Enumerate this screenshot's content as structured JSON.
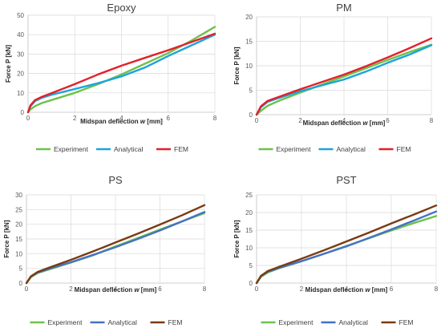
{
  "chart_data": [
    {
      "type": "line",
      "title": "Epoxy",
      "xlabel": "Midspan deflection w [mm]",
      "xlabel_main": "Midspan deflection ",
      "xlabel_var": "w",
      "xlabel_unit": " [mm]",
      "ylabel": "Force P [kN]",
      "xlim": [
        0,
        8
      ],
      "ylim": [
        0,
        50
      ],
      "xticks": [
        "0",
        "2",
        "4",
        "6",
        "8"
      ],
      "yticks": [
        "0",
        "10",
        "20",
        "30",
        "40",
        "50"
      ],
      "grid": true,
      "legend": "bottom",
      "series": [
        {
          "name": "Experiment",
          "color": "#6cc24a",
          "x": [
            0,
            0.1,
            0.3,
            0.6,
            1,
            2,
            3,
            4,
            5,
            6,
            7,
            8
          ],
          "y": [
            0,
            1.5,
            3.2,
            4.8,
            6.3,
            10,
            14.5,
            19.5,
            25,
            30.5,
            37,
            44
          ]
        },
        {
          "name": "Analytical",
          "color": "#1ca3dc",
          "x": [
            0,
            0.1,
            0.3,
            0.6,
            1,
            2,
            3,
            4,
            5,
            6,
            7,
            8
          ],
          "y": [
            0,
            3,
            5.8,
            7.5,
            9,
            12,
            15,
            18.5,
            23,
            29,
            34.5,
            40
          ]
        },
        {
          "name": "FEM",
          "color": "#e3202b",
          "x": [
            0,
            0.1,
            0.3,
            0.6,
            1,
            2,
            3,
            4,
            5,
            6,
            7,
            8
          ],
          "y": [
            0,
            3.5,
            6.3,
            8,
            9.8,
            14.5,
            19.5,
            24,
            28,
            32,
            36.2,
            40.5
          ]
        }
      ]
    },
    {
      "type": "line",
      "title": "PM",
      "xlabel": "Midspan deflection w [mm]",
      "xlabel_main": "Midspan deflection ",
      "xlabel_var": "w",
      "xlabel_unit": " [mm]",
      "ylabel": "Force P [kN]",
      "xlim": [
        0,
        8
      ],
      "ylim": [
        0,
        20
      ],
      "xticks": [
        "0",
        "2",
        "4",
        "6",
        "8"
      ],
      "yticks": [
        "0",
        "5",
        "10",
        "15",
        "20"
      ],
      "grid": true,
      "legend": "bottom",
      "series": [
        {
          "name": "Experiment",
          "color": "#6cc24a",
          "x": [
            0,
            0.2,
            0.5,
            1,
            2,
            3,
            4,
            5,
            6,
            7,
            8
          ],
          "y": [
            0,
            0.8,
            1.8,
            2.8,
            4.5,
            6.2,
            7.8,
            9.5,
            11.2,
            12.8,
            14.3
          ]
        },
        {
          "name": "Analytical",
          "color": "#1ca3dc",
          "x": [
            0,
            0.2,
            0.5,
            1,
            2,
            3,
            4,
            5,
            6,
            7,
            8
          ],
          "y": [
            0,
            1.5,
            2.6,
            3.4,
            4.8,
            6,
            7.2,
            8.8,
            10.6,
            12.3,
            14.2
          ]
        },
        {
          "name": "FEM",
          "color": "#e3202b",
          "x": [
            0,
            0.2,
            0.5,
            1,
            2,
            3,
            4,
            5,
            6,
            7,
            8
          ],
          "y": [
            0,
            1.7,
            2.8,
            3.6,
            5.2,
            6.7,
            8.2,
            9.9,
            11.7,
            13.6,
            15.6
          ]
        }
      ]
    },
    {
      "type": "line",
      "title": "PS",
      "xlabel": "Midspan deflection w [mm]",
      "xlabel_main": "Midspan deflection ",
      "xlabel_var": "w",
      "xlabel_unit": " [mm]",
      "ylabel": "Force P [kN]",
      "xlim": [
        0,
        8
      ],
      "ylim": [
        0,
        30
      ],
      "xticks": [
        "0",
        "2",
        "4",
        "6",
        "8"
      ],
      "yticks": [
        "0",
        "5",
        "10",
        "15",
        "20",
        "25",
        "30"
      ],
      "grid": true,
      "legend": "bottom",
      "series": [
        {
          "name": "Experiment",
          "color": "#6cc24a",
          "x": [
            0,
            0.2,
            0.5,
            1,
            2,
            3,
            4,
            5,
            6,
            7,
            8
          ],
          "y": [
            0,
            2,
            3.4,
            4.6,
            7,
            9.5,
            12.5,
            15.3,
            18.2,
            21,
            23.8
          ]
        },
        {
          "name": "Analytical",
          "color": "#4472c4",
          "x": [
            0,
            0.2,
            0.5,
            1,
            2,
            3,
            4,
            5,
            6,
            7,
            8
          ],
          "y": [
            0,
            2.2,
            3.6,
            4.8,
            7.1,
            9.6,
            12.2,
            15,
            17.9,
            21,
            24.2
          ]
        },
        {
          "name": "FEM",
          "color": "#7b3a12",
          "x": [
            0,
            0.2,
            0.5,
            1,
            2,
            3,
            4,
            5,
            6,
            7,
            8
          ],
          "y": [
            0,
            2.3,
            3.8,
            5.2,
            7.9,
            10.8,
            13.8,
            16.8,
            19.9,
            23.1,
            26.5
          ]
        }
      ]
    },
    {
      "type": "line",
      "title": "PST",
      "xlabel": "Midspan deflection w [mm]",
      "xlabel_main": "Midspan deflection ",
      "xlabel_var": "w",
      "xlabel_unit": " [mm]",
      "ylabel": "Force P [kN]",
      "xlim": [
        0,
        8
      ],
      "ylim": [
        0,
        25
      ],
      "xticks": [
        "0",
        "2",
        "4",
        "6",
        "8"
      ],
      "yticks": [
        "0",
        "5",
        "10",
        "15",
        "20",
        "25"
      ],
      "grid": true,
      "legend": "bottom",
      "series": [
        {
          "name": "Experiment",
          "color": "#6cc24a",
          "x": [
            0,
            0.2,
            0.5,
            1,
            2,
            3,
            4,
            5,
            6,
            7,
            8
          ],
          "y": [
            0,
            1.8,
            3,
            4.2,
            6.2,
            8.3,
            10.5,
            12.7,
            14.9,
            17,
            19
          ]
        },
        {
          "name": "Analytical",
          "color": "#4472c4",
          "x": [
            0,
            0.2,
            0.5,
            1,
            2,
            3,
            4,
            5,
            6,
            7,
            8
          ],
          "y": [
            0,
            2,
            3.2,
            4.3,
            6.2,
            8.3,
            10.4,
            12.8,
            15.2,
            17.7,
            20.3
          ]
        },
        {
          "name": "FEM",
          "color": "#7b3a12",
          "x": [
            0,
            0.2,
            0.5,
            1,
            2,
            3,
            4,
            5,
            6,
            7,
            8
          ],
          "y": [
            0,
            2.1,
            3.4,
            4.6,
            6.9,
            9.3,
            11.8,
            14.3,
            16.9,
            19.4,
            22
          ]
        }
      ]
    }
  ]
}
